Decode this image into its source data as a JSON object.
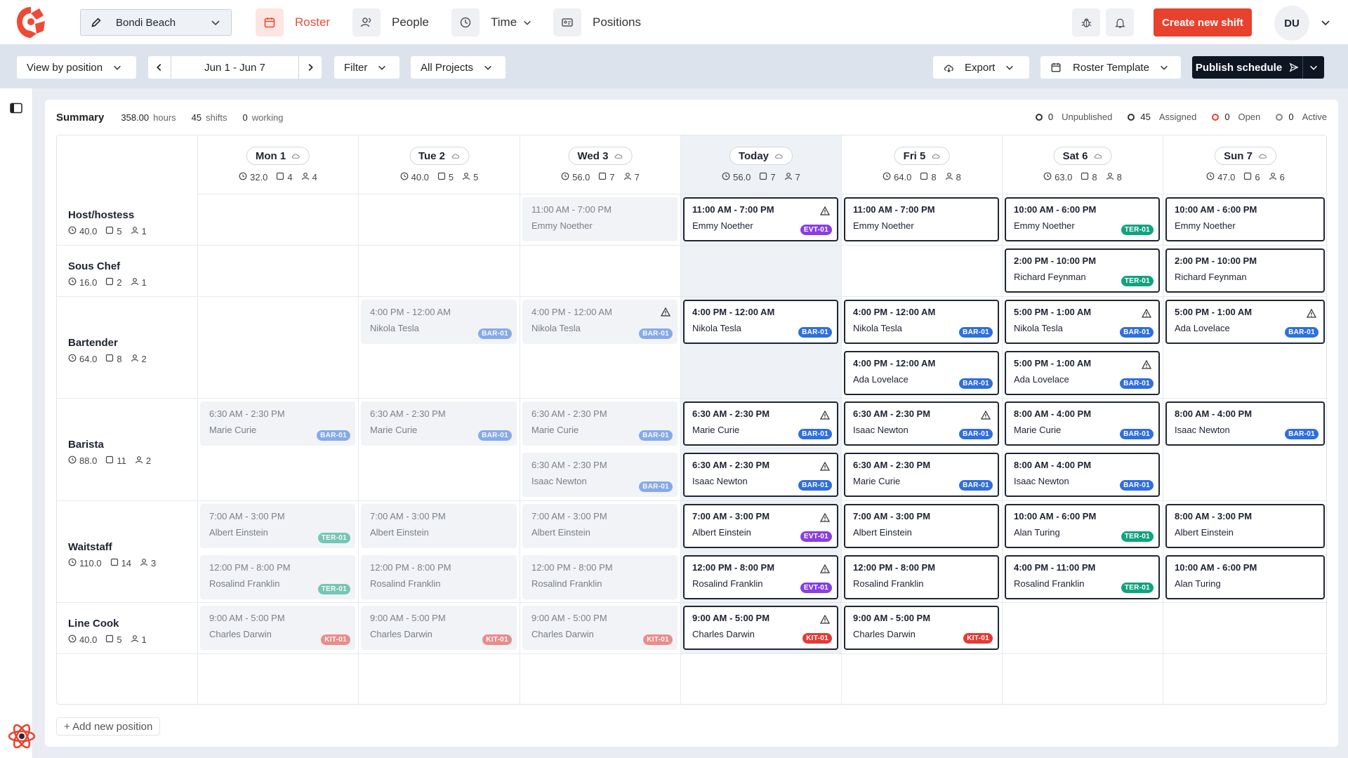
{
  "nav": {
    "location": "Bondi Beach",
    "items": [
      {
        "label": "Roster",
        "icon": "calendar-icon"
      },
      {
        "label": "People",
        "icon": "people-icon"
      },
      {
        "label": "Time",
        "icon": "clock-icon"
      },
      {
        "label": "Positions",
        "icon": "id-card-icon"
      }
    ],
    "create_label": "Create new shift",
    "avatar_initials": "DU",
    "accent": "#e8412e"
  },
  "toolbar": {
    "view_label": "View by position",
    "date_range": "Jun 1 - Jun 7",
    "filter_label": "Filter",
    "projects_label": "All Projects",
    "export_label": "Export",
    "template_label": "Roster Template",
    "publish_label": "Publish schedule"
  },
  "summary": {
    "title": "Summary",
    "hours": "358.00",
    "hours_unit": "hours",
    "shifts": "45",
    "shifts_unit": "shifts",
    "working": "0",
    "working_unit": "working",
    "legend": [
      {
        "count": "0",
        "label": "Unpublished",
        "color": "#333333"
      },
      {
        "count": "45",
        "label": "Assigned",
        "color": "#333333"
      },
      {
        "count": "0",
        "label": "Open",
        "color": "#e8412e"
      },
      {
        "count": "0",
        "label": "Active",
        "color": "#888888"
      }
    ]
  },
  "days": [
    {
      "label": "Mon 1",
      "hours": "32.0",
      "shifts": "4",
      "people": "4"
    },
    {
      "label": "Tue 2",
      "hours": "40.0",
      "shifts": "5",
      "people": "5"
    },
    {
      "label": "Wed 3",
      "hours": "56.0",
      "shifts": "7",
      "people": "7"
    },
    {
      "label": "Today",
      "hours": "56.0",
      "shifts": "7",
      "people": "7"
    },
    {
      "label": "Fri 5",
      "hours": "64.0",
      "shifts": "8",
      "people": "8"
    },
    {
      "label": "Sat 6",
      "hours": "63.0",
      "shifts": "8",
      "people": "8"
    },
    {
      "label": "Sun 7",
      "hours": "47.0",
      "shifts": "6",
      "people": "6"
    }
  ],
  "positions": [
    {
      "name": "Host/hostess",
      "hours": "40.0",
      "shifts": "5",
      "people": "1"
    },
    {
      "name": "Sous Chef",
      "hours": "16.0",
      "shifts": "2",
      "people": "1"
    },
    {
      "name": "Bartender",
      "hours": "64.0",
      "shifts": "8",
      "people": "2"
    },
    {
      "name": "Barista",
      "hours": "88.0",
      "shifts": "11",
      "people": "2"
    },
    {
      "name": "Waitstaff",
      "hours": "110.0",
      "shifts": "14",
      "people": "3"
    },
    {
      "name": "Line Cook",
      "hours": "40.0",
      "shifts": "5",
      "people": "1"
    }
  ],
  "shifts": [
    {
      "row": 0,
      "day": 2,
      "slot": 0,
      "time": "11:00 AM - 7:00 PM",
      "employee": "Emmy Noether",
      "tag": "",
      "warn": false
    },
    {
      "row": 0,
      "day": 3,
      "slot": 0,
      "time": "11:00 AM - 7:00 PM",
      "employee": "Emmy Noether",
      "tag": "EVT-01",
      "warn": true
    },
    {
      "row": 0,
      "day": 4,
      "slot": 0,
      "time": "11:00 AM - 7:00 PM",
      "employee": "Emmy Noether",
      "tag": "",
      "warn": false
    },
    {
      "row": 0,
      "day": 5,
      "slot": 0,
      "time": "10:00 AM - 6:00 PM",
      "employee": "Emmy Noether",
      "tag": "TER-01",
      "warn": false
    },
    {
      "row": 0,
      "day": 6,
      "slot": 0,
      "time": "10:00 AM - 6:00 PM",
      "employee": "Emmy Noether",
      "tag": "",
      "warn": false
    },
    {
      "row": 1,
      "day": 5,
      "slot": 0,
      "time": "2:00 PM - 10:00 PM",
      "employee": "Richard Feynman",
      "tag": "TER-01",
      "warn": false
    },
    {
      "row": 1,
      "day": 6,
      "slot": 0,
      "time": "2:00 PM - 10:00 PM",
      "employee": "Richard Feynman",
      "tag": "",
      "warn": false
    },
    {
      "row": 2,
      "day": 1,
      "slot": 0,
      "time": "4:00 PM - 12:00 AM",
      "employee": "Nikola Tesla",
      "tag": "BAR-01",
      "warn": false
    },
    {
      "row": 2,
      "day": 2,
      "slot": 0,
      "time": "4:00 PM - 12:00 AM",
      "employee": "Nikola Tesla",
      "tag": "BAR-01",
      "warn": true
    },
    {
      "row": 2,
      "day": 3,
      "slot": 0,
      "time": "4:00 PM - 12:00 AM",
      "employee": "Nikola Tesla",
      "tag": "BAR-01",
      "warn": false
    },
    {
      "row": 2,
      "day": 4,
      "slot": 0,
      "time": "4:00 PM - 12:00 AM",
      "employee": "Nikola Tesla",
      "tag": "BAR-01",
      "warn": false
    },
    {
      "row": 2,
      "day": 5,
      "slot": 0,
      "time": "5:00 PM - 1:00 AM",
      "employee": "Nikola Tesla",
      "tag": "BAR-01",
      "warn": true
    },
    {
      "row": 2,
      "day": 6,
      "slot": 0,
      "time": "5:00 PM - 1:00 AM",
      "employee": "Ada Lovelace",
      "tag": "BAR-01",
      "warn": true
    },
    {
      "row": 2,
      "day": 4,
      "slot": 1,
      "time": "4:00 PM - 12:00 AM",
      "employee": "Ada Lovelace",
      "tag": "BAR-01",
      "warn": false
    },
    {
      "row": 2,
      "day": 5,
      "slot": 1,
      "time": "5:00 PM - 1:00 AM",
      "employee": "Ada Lovelace",
      "tag": "BAR-01",
      "warn": true
    },
    {
      "row": 3,
      "day": 0,
      "slot": 0,
      "time": "6:30 AM - 2:30 PM",
      "employee": "Marie Curie",
      "tag": "BAR-01",
      "warn": false
    },
    {
      "row": 3,
      "day": 1,
      "slot": 0,
      "time": "6:30 AM - 2:30 PM",
      "employee": "Marie Curie",
      "tag": "BAR-01",
      "warn": false
    },
    {
      "row": 3,
      "day": 2,
      "slot": 0,
      "time": "6:30 AM - 2:30 PM",
      "employee": "Marie Curie",
      "tag": "BAR-01",
      "warn": false
    },
    {
      "row": 3,
      "day": 3,
      "slot": 0,
      "time": "6:30 AM - 2:30 PM",
      "employee": "Marie Curie",
      "tag": "BAR-01",
      "warn": true
    },
    {
      "row": 3,
      "day": 4,
      "slot": 0,
      "time": "6:30 AM - 2:30 PM",
      "employee": "Isaac Newton",
      "tag": "BAR-01",
      "warn": true
    },
    {
      "row": 3,
      "day": 5,
      "slot": 0,
      "time": "8:00 AM - 4:00 PM",
      "employee": "Marie Curie",
      "tag": "BAR-01",
      "warn": false
    },
    {
      "row": 3,
      "day": 6,
      "slot": 0,
      "time": "8:00 AM - 4:00 PM",
      "employee": "Isaac Newton",
      "tag": "BAR-01",
      "warn": false
    },
    {
      "row": 3,
      "day": 2,
      "slot": 1,
      "time": "6:30 AM - 2:30 PM",
      "employee": "Isaac Newton",
      "tag": "BAR-01",
      "warn": false
    },
    {
      "row": 3,
      "day": 3,
      "slot": 1,
      "time": "6:30 AM - 2:30 PM",
      "employee": "Isaac Newton",
      "tag": "BAR-01",
      "warn": true
    },
    {
      "row": 3,
      "day": 4,
      "slot": 1,
      "time": "6:30 AM - 2:30 PM",
      "employee": "Marie Curie",
      "tag": "BAR-01",
      "warn": false
    },
    {
      "row": 3,
      "day": 5,
      "slot": 1,
      "time": "8:00 AM - 4:00 PM",
      "employee": "Isaac Newton",
      "tag": "BAR-01",
      "warn": false
    },
    {
      "row": 4,
      "day": 0,
      "slot": 0,
      "time": "7:00 AM - 3:00 PM",
      "employee": "Albert Einstein",
      "tag": "TER-01",
      "warn": false
    },
    {
      "row": 4,
      "day": 1,
      "slot": 0,
      "time": "7:00 AM - 3:00 PM",
      "employee": "Albert Einstein",
      "tag": "",
      "warn": false
    },
    {
      "row": 4,
      "day": 2,
      "slot": 0,
      "time": "7:00 AM - 3:00 PM",
      "employee": "Albert Einstein",
      "tag": "",
      "warn": false
    },
    {
      "row": 4,
      "day": 3,
      "slot": 0,
      "time": "7:00 AM - 3:00 PM",
      "employee": "Albert Einstein",
      "tag": "EVT-01",
      "warn": true
    },
    {
      "row": 4,
      "day": 4,
      "slot": 0,
      "time": "7:00 AM - 3:00 PM",
      "employee": "Albert Einstein",
      "tag": "",
      "warn": false
    },
    {
      "row": 4,
      "day": 5,
      "slot": 0,
      "time": "10:00 AM - 6:00 PM",
      "employee": "Alan Turing",
      "tag": "TER-01",
      "warn": false
    },
    {
      "row": 4,
      "day": 6,
      "slot": 0,
      "time": "8:00 AM - 3:00 PM",
      "employee": "Albert Einstein",
      "tag": "",
      "warn": false
    },
    {
      "row": 4,
      "day": 0,
      "slot": 1,
      "time": "12:00 PM - 8:00 PM",
      "employee": "Rosalind Franklin",
      "tag": "TER-01",
      "warn": false
    },
    {
      "row": 4,
      "day": 1,
      "slot": 1,
      "time": "12:00 PM - 8:00 PM",
      "employee": "Rosalind Franklin",
      "tag": "",
      "warn": false
    },
    {
      "row": 4,
      "day": 2,
      "slot": 1,
      "time": "12:00 PM - 8:00 PM",
      "employee": "Rosalind Franklin",
      "tag": "",
      "warn": false
    },
    {
      "row": 4,
      "day": 3,
      "slot": 1,
      "time": "12:00 PM - 8:00 PM",
      "employee": "Rosalind Franklin",
      "tag": "EVT-01",
      "warn": true
    },
    {
      "row": 4,
      "day": 4,
      "slot": 1,
      "time": "12:00 PM - 8:00 PM",
      "employee": "Rosalind Franklin",
      "tag": "",
      "warn": false
    },
    {
      "row": 4,
      "day": 5,
      "slot": 1,
      "time": "4:00 PM - 11:00 PM",
      "employee": "Rosalind Franklin",
      "tag": "TER-01",
      "warn": false
    },
    {
      "row": 4,
      "day": 6,
      "slot": 1,
      "time": "10:00 AM - 6:00 PM",
      "employee": "Alan Turing",
      "tag": "",
      "warn": false
    },
    {
      "row": 5,
      "day": 0,
      "slot": 0,
      "time": "9:00 AM - 5:00 PM",
      "employee": "Charles Darwin",
      "tag": "KIT-01",
      "warn": false
    },
    {
      "row": 5,
      "day": 1,
      "slot": 0,
      "time": "9:00 AM - 5:00 PM",
      "employee": "Charles Darwin",
      "tag": "KIT-01",
      "warn": false
    },
    {
      "row": 5,
      "day": 2,
      "slot": 0,
      "time": "9:00 AM - 5:00 PM",
      "employee": "Charles Darwin",
      "tag": "KIT-01",
      "warn": false
    },
    {
      "row": 5,
      "day": 3,
      "slot": 0,
      "time": "9:00 AM - 5:00 PM",
      "employee": "Charles Darwin",
      "tag": "KIT-01",
      "warn": true
    },
    {
      "row": 5,
      "day": 4,
      "slot": 0,
      "time": "9:00 AM - 5:00 PM",
      "employee": "Charles Darwin",
      "tag": "KIT-01",
      "warn": false
    }
  ],
  "tag_colors": {
    "BAR-01": "#2f6fde",
    "TER-01": "#11a37f",
    "EVT-01": "#8a3fe0",
    "KIT-01": "#e53935"
  },
  "today_index": 3,
  "add_position_label": "+ Add new position"
}
